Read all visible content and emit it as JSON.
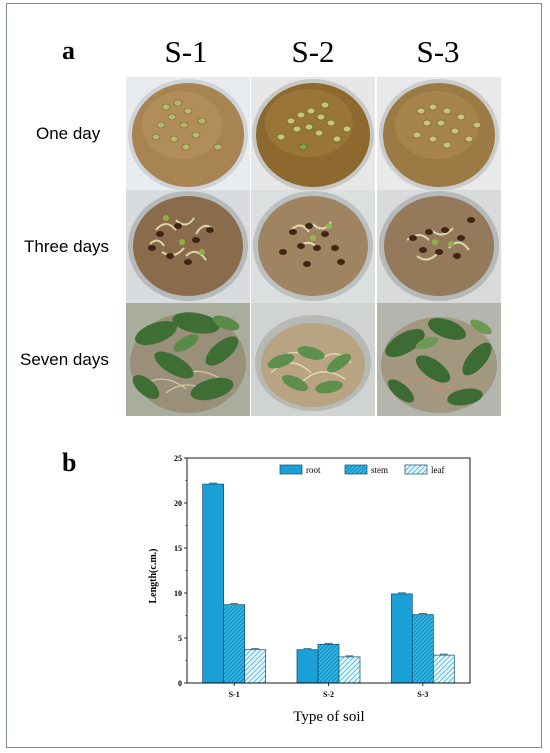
{
  "figure": {
    "panel_a": {
      "letter": "a",
      "columns": [
        "S-1",
        "S-2",
        "S-3"
      ],
      "rows": [
        "One day",
        "Three days",
        "Seven days"
      ]
    },
    "panel_b": {
      "letter": "b"
    }
  },
  "chart_data": {
    "type": "bar",
    "categories": [
      "S-1",
      "S-2",
      "S-3"
    ],
    "series": [
      {
        "name": "root",
        "values": [
          22.1,
          3.7,
          9.9
        ],
        "color": "#1a9fd6",
        "hatch": "none"
      },
      {
        "name": "stem",
        "values": [
          8.7,
          4.3,
          7.6
        ],
        "color": "#33b6e6",
        "hatch": "dense"
      },
      {
        "name": "leaf",
        "values": [
          3.7,
          2.9,
          3.1
        ],
        "color": "#cfeef8",
        "hatch": "light"
      }
    ],
    "xlabel": "Type of soil",
    "ylabel": "Length(c.m.)",
    "ylim": [
      0,
      25
    ],
    "yticks": [
      "0",
      "5",
      "10",
      "15",
      "20",
      "25"
    ],
    "legend_position": "top-right",
    "grid": false
  }
}
